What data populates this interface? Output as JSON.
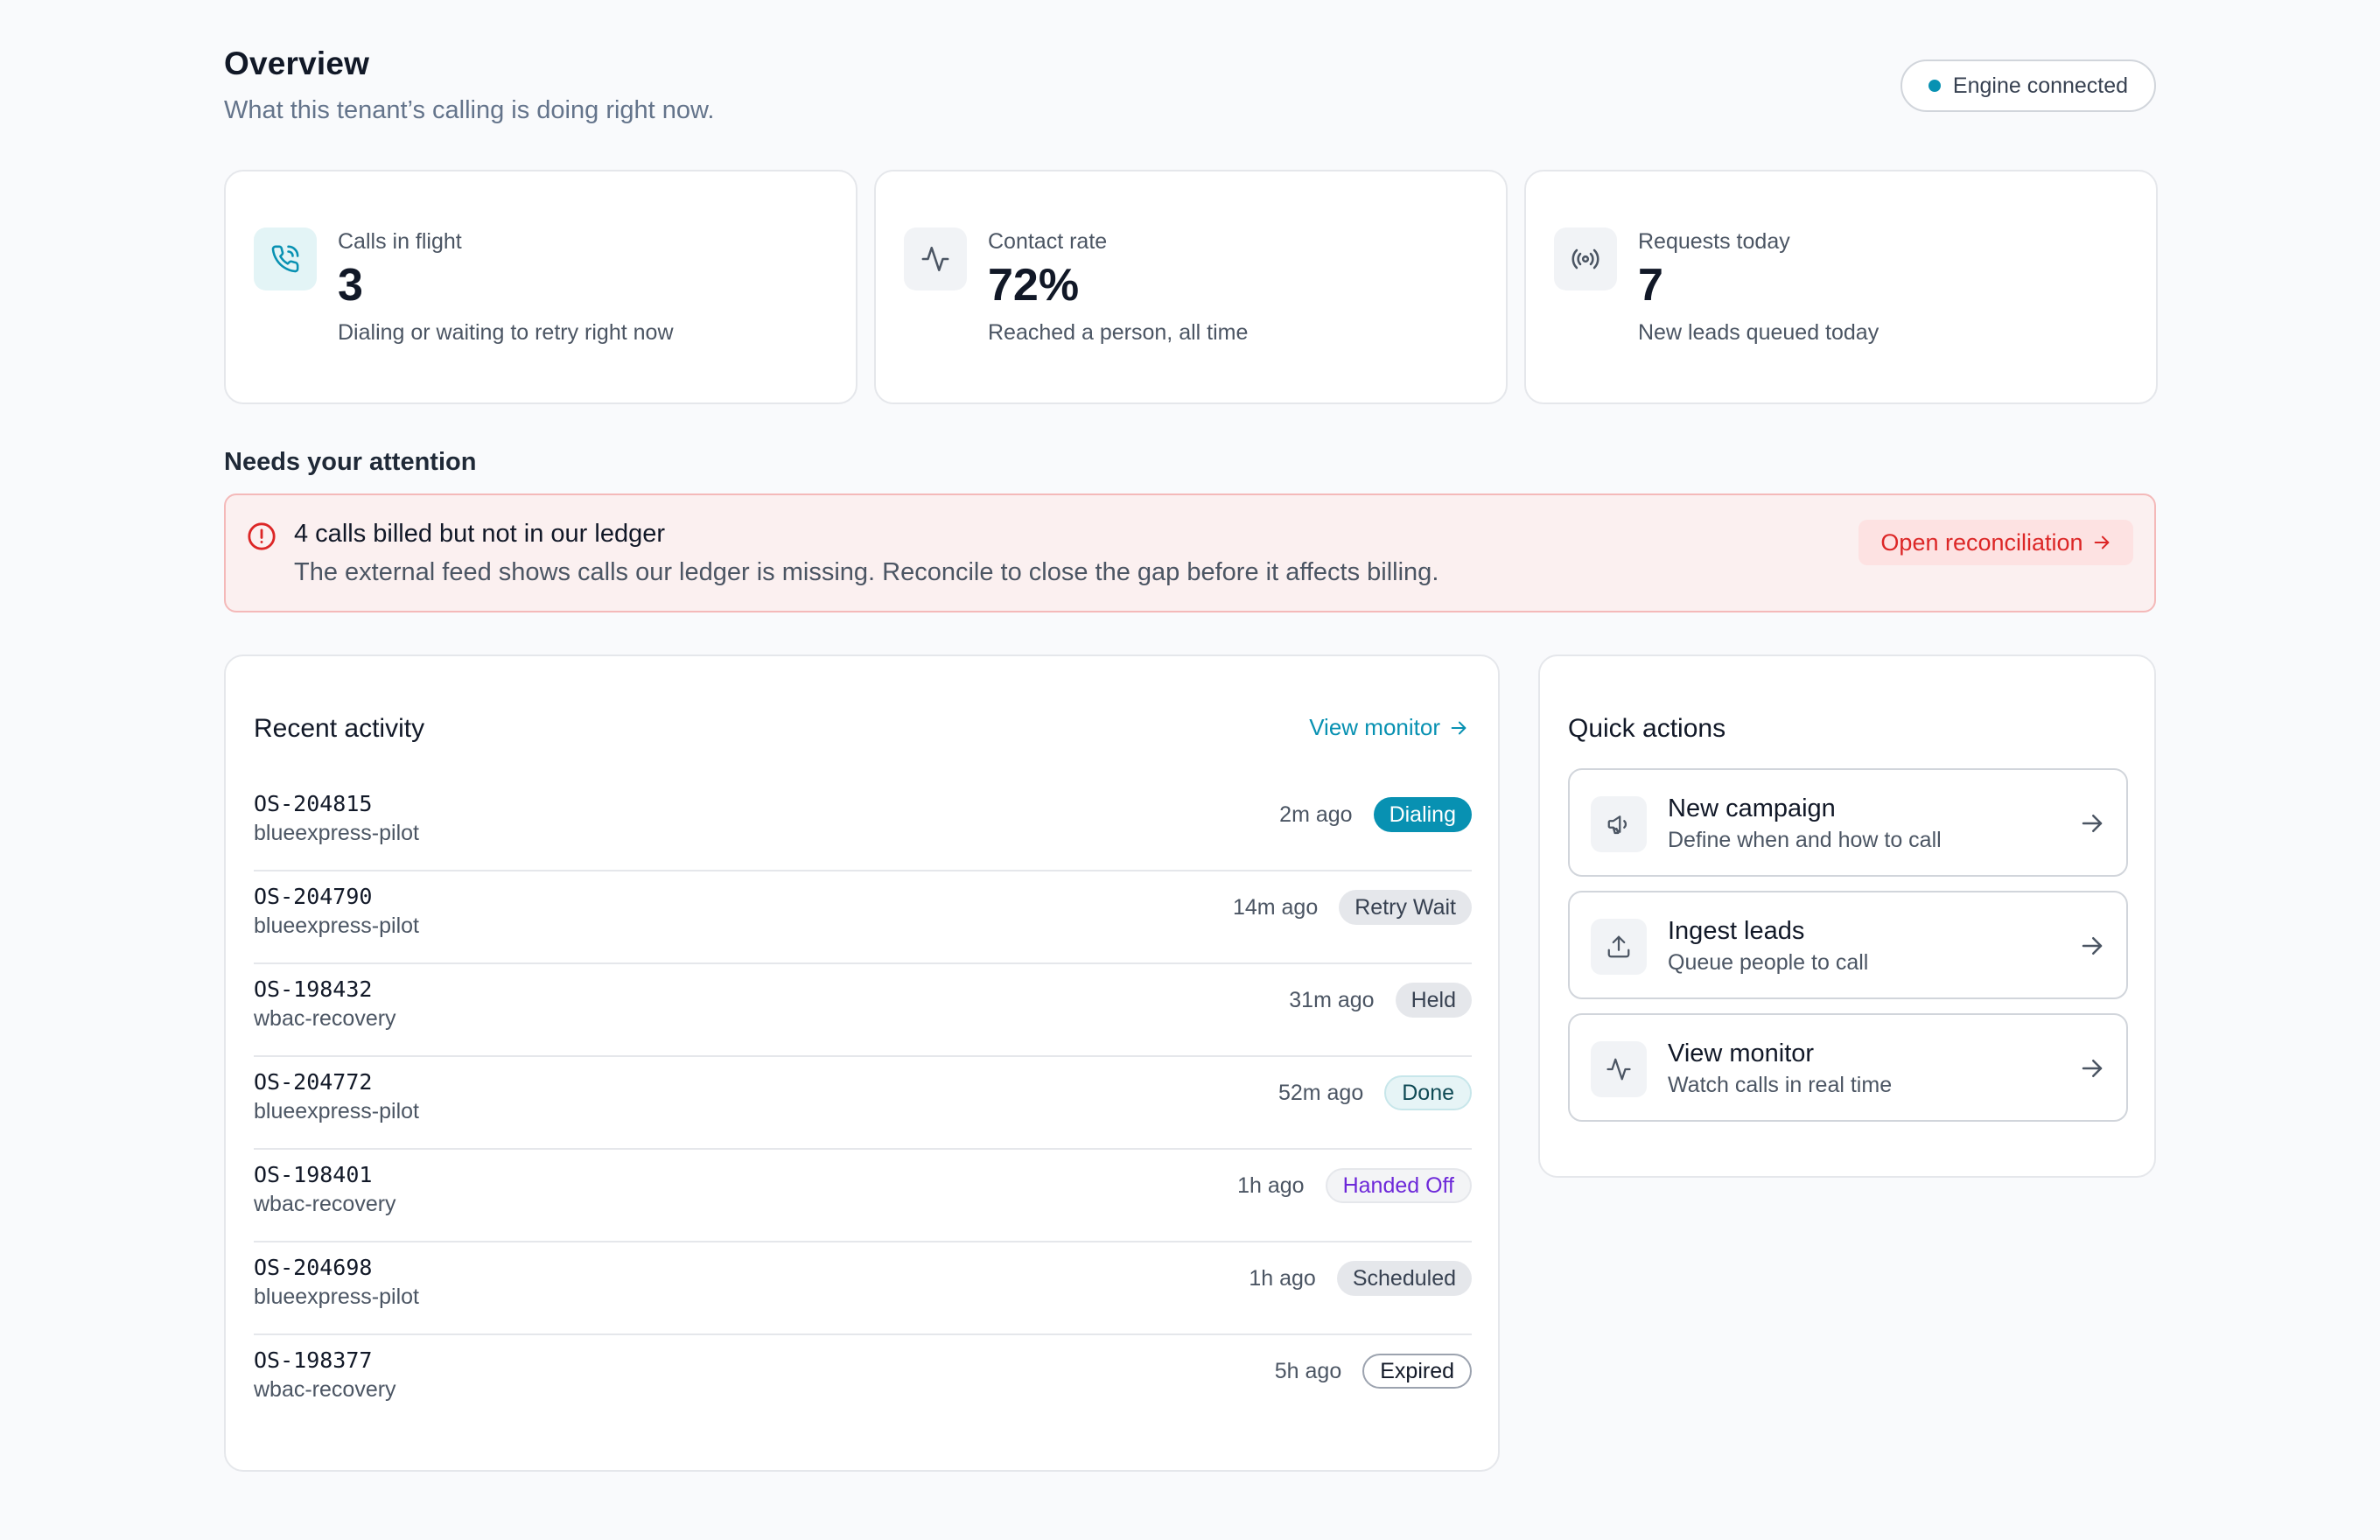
{
  "header": {
    "title": "Overview",
    "subtitle": "What this tenant’s calling is doing right now.",
    "engine_status": "Engine connected"
  },
  "stats": [
    {
      "icon": "phone-call-icon",
      "label": "Calls in flight",
      "value": "3",
      "sub": "Dialing or waiting to retry right now"
    },
    {
      "icon": "activity-icon",
      "label": "Contact rate",
      "value": "72%",
      "sub": "Reached a person, all time"
    },
    {
      "icon": "radio-broadcast-icon",
      "label": "Requests today",
      "value": "7",
      "sub": "New leads queued today"
    }
  ],
  "attention": {
    "heading": "Needs your attention",
    "alert": {
      "icon": "alert-circle-icon",
      "title": "4 calls billed but not in our ledger",
      "text": "The external feed shows calls our ledger is missing. Reconcile to close the gap before it affects billing.",
      "button": "Open reconciliation"
    }
  },
  "activity": {
    "heading": "Recent activity",
    "link": "View monitor",
    "rows": [
      {
        "id": "OS-204815",
        "campaign": "blueexpress-pilot",
        "time": "2m ago",
        "status": "Dialing"
      },
      {
        "id": "OS-204790",
        "campaign": "blueexpress-pilot",
        "time": "14m ago",
        "status": "Retry Wait"
      },
      {
        "id": "OS-198432",
        "campaign": "wbac-recovery",
        "time": "31m ago",
        "status": "Held"
      },
      {
        "id": "OS-204772",
        "campaign": "blueexpress-pilot",
        "time": "52m ago",
        "status": "Done"
      },
      {
        "id": "OS-198401",
        "campaign": "wbac-recovery",
        "time": "1h ago",
        "status": "Handed Off"
      },
      {
        "id": "OS-204698",
        "campaign": "blueexpress-pilot",
        "time": "1h ago",
        "status": "Scheduled"
      },
      {
        "id": "OS-198377",
        "campaign": "wbac-recovery",
        "time": "5h ago",
        "status": "Expired"
      }
    ]
  },
  "quick_actions": {
    "heading": "Quick actions",
    "items": [
      {
        "icon": "megaphone-icon",
        "title": "New campaign",
        "sub": "Define when and how to call"
      },
      {
        "icon": "upload-icon",
        "title": "Ingest leads",
        "sub": "Queue people to call"
      },
      {
        "icon": "activity-icon",
        "title": "View monitor",
        "sub": "Watch calls in real time"
      }
    ]
  },
  "colors": {
    "accent": "#0891b2",
    "danger": "#dc2626",
    "alert_bg": "#fbf0f0",
    "handed_off": "#6d28d9"
  }
}
